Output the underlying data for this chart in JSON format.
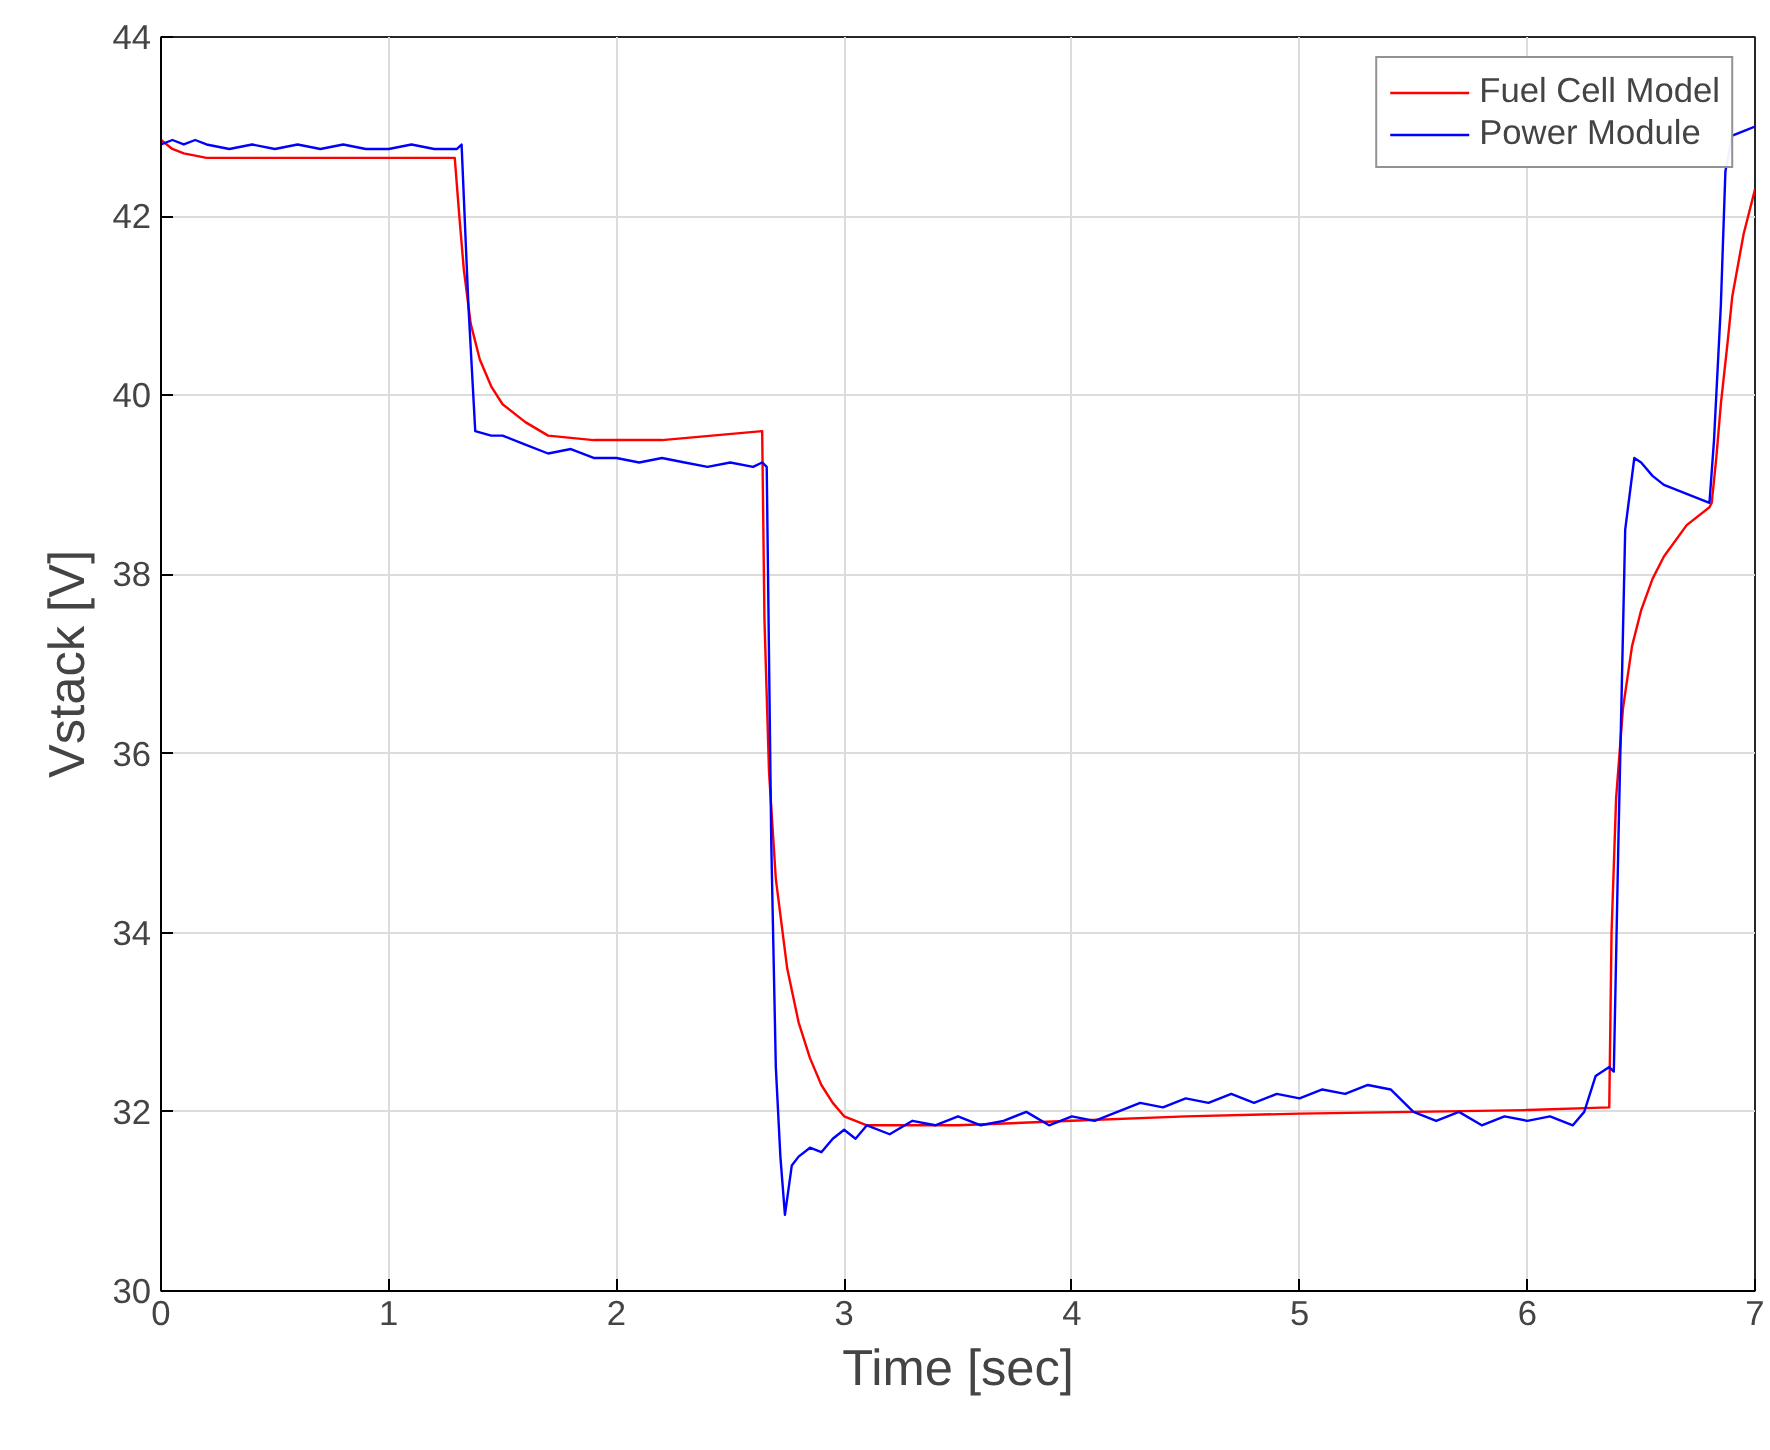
{
  "chart_data": {
    "type": "line",
    "xlabel": "Time [sec]",
    "ylabel": "Vstack [V]",
    "xlim": [
      0,
      7
    ],
    "ylim": [
      30,
      44
    ],
    "xticks": [
      0,
      1,
      2,
      3,
      4,
      5,
      6,
      7
    ],
    "yticks": [
      30,
      32,
      34,
      36,
      38,
      40,
      42,
      44
    ],
    "grid": true,
    "legend": "top right",
    "marker": "none",
    "line_style": "solid",
    "series": [
      {
        "name": "Fuel Cell Model",
        "color": "#ff0000",
        "x": [
          0,
          0.05,
          0.1,
          0.2,
          0.5,
          1.0,
          1.29,
          1.31,
          1.33,
          1.36,
          1.4,
          1.45,
          1.5,
          1.6,
          1.7,
          1.9,
          2.2,
          2.64,
          2.65,
          2.67,
          2.7,
          2.75,
          2.8,
          2.85,
          2.9,
          2.95,
          3.0,
          3.1,
          3.5,
          4.0,
          4.5,
          5.0,
          5.5,
          6.0,
          6.36,
          6.37,
          6.39,
          6.42,
          6.46,
          6.5,
          6.55,
          6.6,
          6.7,
          6.8,
          6.81,
          6.83,
          6.85,
          6.88,
          6.9,
          6.95,
          7.0
        ],
        "values": [
          42.85,
          42.75,
          42.7,
          42.65,
          42.65,
          42.65,
          42.65,
          42.0,
          41.4,
          40.8,
          40.4,
          40.1,
          39.9,
          39.7,
          39.55,
          39.5,
          39.5,
          39.6,
          37.5,
          35.8,
          34.6,
          33.6,
          33.0,
          32.6,
          32.3,
          32.1,
          31.95,
          31.85,
          31.85,
          31.9,
          31.95,
          31.98,
          32.0,
          32.02,
          32.05,
          34.0,
          35.5,
          36.5,
          37.2,
          37.6,
          37.95,
          38.2,
          38.55,
          38.75,
          38.8,
          39.3,
          39.9,
          40.6,
          41.1,
          41.8,
          42.3
        ]
      },
      {
        "name": "Power Module",
        "color": "#0000ff",
        "x": [
          0,
          0.05,
          0.1,
          0.15,
          0.2,
          0.3,
          0.4,
          0.5,
          0.6,
          0.7,
          0.8,
          0.9,
          1.0,
          1.1,
          1.2,
          1.3,
          1.32,
          1.35,
          1.38,
          1.45,
          1.5,
          1.6,
          1.7,
          1.8,
          1.9,
          2.0,
          2.1,
          2.2,
          2.3,
          2.4,
          2.5,
          2.6,
          2.64,
          2.66,
          2.68,
          2.7,
          2.72,
          2.74,
          2.77,
          2.8,
          2.85,
          2.9,
          2.95,
          3.0,
          3.05,
          3.1,
          3.2,
          3.3,
          3.4,
          3.5,
          3.6,
          3.7,
          3.8,
          3.9,
          4.0,
          4.1,
          4.2,
          4.3,
          4.4,
          4.5,
          4.6,
          4.7,
          4.8,
          4.9,
          5.0,
          5.1,
          5.2,
          5.3,
          5.4,
          5.5,
          5.6,
          5.7,
          5.8,
          5.9,
          6.0,
          6.1,
          6.2,
          6.25,
          6.3,
          6.36,
          6.38,
          6.4,
          6.43,
          6.47,
          6.5,
          6.55,
          6.6,
          6.65,
          6.7,
          6.75,
          6.8,
          6.82,
          6.85,
          6.87,
          6.9,
          6.95,
          7.0
        ],
        "values": [
          42.8,
          42.85,
          42.8,
          42.85,
          42.8,
          42.75,
          42.8,
          42.75,
          42.8,
          42.75,
          42.8,
          42.75,
          42.75,
          42.8,
          42.75,
          42.75,
          42.8,
          41.0,
          39.6,
          39.55,
          39.55,
          39.45,
          39.35,
          39.4,
          39.3,
          39.3,
          39.25,
          39.3,
          39.25,
          39.2,
          39.25,
          39.2,
          39.25,
          39.2,
          35.0,
          32.5,
          31.5,
          30.85,
          31.4,
          31.5,
          31.6,
          31.55,
          31.7,
          31.8,
          31.7,
          31.85,
          31.75,
          31.9,
          31.85,
          31.95,
          31.85,
          31.9,
          32.0,
          31.85,
          31.95,
          31.9,
          32.0,
          32.1,
          32.05,
          32.15,
          32.1,
          32.2,
          32.1,
          32.2,
          32.15,
          32.25,
          32.2,
          32.3,
          32.25,
          32.0,
          31.9,
          32.0,
          31.85,
          31.95,
          31.9,
          31.95,
          31.85,
          32.0,
          32.4,
          32.5,
          32.45,
          35.0,
          38.5,
          39.3,
          39.25,
          39.1,
          39.0,
          38.95,
          38.9,
          38.85,
          38.8,
          39.5,
          41.0,
          42.5,
          42.9,
          42.95,
          43.0
        ]
      }
    ]
  }
}
